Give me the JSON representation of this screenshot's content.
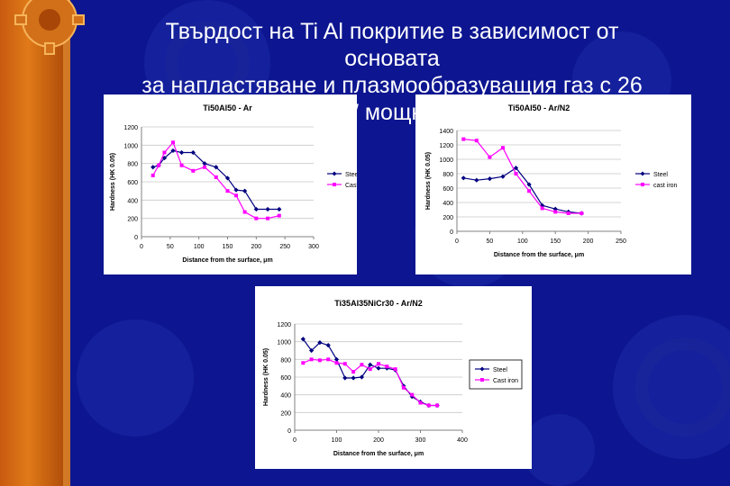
{
  "slide": {
    "title_lines": [
      "Твърдост на Ti Al покритие в зависимост от",
      "основата",
      "за напластяване и плазмообразуващия газ с 26",
      "kW мощност"
    ],
    "colors": {
      "background": "#0d1690",
      "steel": "#000080",
      "cast_iron": "#ff00ff",
      "accent": "#e07a18"
    }
  },
  "chart_data": [
    {
      "type": "line",
      "title": "Ti50Al50 - Ar",
      "xlabel": "Distance from the surface, μm",
      "ylabel": "Hardness (HK 0.05)",
      "xlim": [
        0,
        300
      ],
      "ylim": [
        0,
        1200
      ],
      "xticks": [
        "0",
        "50",
        "100",
        "150",
        "200",
        "250",
        "300"
      ],
      "yticks": [
        "0",
        "200",
        "400",
        "600",
        "800",
        "1000",
        "1200"
      ],
      "legend": [
        "Steel",
        "Cast iron"
      ],
      "series": [
        {
          "name": "Steel",
          "x": [
            20,
            30,
            40,
            55,
            70,
            90,
            110,
            130,
            150,
            165,
            180,
            200,
            220,
            240
          ],
          "y": [
            760,
            780,
            860,
            940,
            920,
            920,
            800,
            760,
            640,
            510,
            500,
            300,
            300,
            300
          ]
        },
        {
          "name": "Cast iron",
          "x": [
            20,
            30,
            40,
            55,
            70,
            90,
            110,
            130,
            150,
            165,
            180,
            200,
            220,
            240
          ],
          "y": [
            670,
            780,
            920,
            1030,
            780,
            720,
            760,
            650,
            500,
            450,
            270,
            200,
            200,
            230
          ]
        }
      ]
    },
    {
      "type": "line",
      "title": "Ti50Al50 - Ar/N2",
      "xlabel": "Distance from the surface, μm",
      "ylabel": "Hardness (HK 0.05)",
      "xlim": [
        0,
        250
      ],
      "ylim": [
        0,
        1400
      ],
      "xticks": [
        "0",
        "50",
        "100",
        "150",
        "200",
        "250"
      ],
      "yticks": [
        "0",
        "200",
        "400",
        "600",
        "800",
        "1000",
        "1200",
        "1400"
      ],
      "legend": [
        "Steel",
        "cast iron"
      ],
      "series": [
        {
          "name": "Steel",
          "x": [
            10,
            30,
            50,
            70,
            90,
            110,
            130,
            150,
            170,
            190
          ],
          "y": [
            740,
            710,
            730,
            760,
            880,
            650,
            360,
            310,
            270,
            250
          ]
        },
        {
          "name": "cast iron",
          "x": [
            10,
            30,
            50,
            70,
            90,
            110,
            130,
            150,
            170,
            190
          ],
          "y": [
            1280,
            1260,
            1030,
            1160,
            800,
            560,
            320,
            270,
            250,
            250
          ]
        }
      ]
    },
    {
      "type": "line",
      "title": "Ti35Al35NiCr30 - Ar/N2",
      "xlabel": "Distance from the surface, μm",
      "ylabel": "Hardness (HK 0.05)",
      "xlim": [
        0,
        400
      ],
      "ylim": [
        0,
        1200
      ],
      "xticks": [
        "0",
        "100",
        "200",
        "300",
        "400"
      ],
      "yticks": [
        "0",
        "200",
        "400",
        "600",
        "800",
        "1000",
        "1200"
      ],
      "legend": [
        "Steel",
        "Cast iron"
      ],
      "series": [
        {
          "name": "Steel",
          "x": [
            20,
            40,
            60,
            80,
            100,
            120,
            140,
            160,
            180,
            200,
            220,
            240,
            260,
            280,
            300,
            320,
            340
          ],
          "y": [
            1030,
            900,
            990,
            960,
            800,
            590,
            590,
            600,
            740,
            700,
            700,
            680,
            500,
            380,
            320,
            280,
            280
          ]
        },
        {
          "name": "Cast iron",
          "x": [
            20,
            40,
            60,
            80,
            100,
            120,
            140,
            160,
            180,
            200,
            220,
            240,
            260,
            280,
            300,
            320,
            340
          ],
          "y": [
            760,
            800,
            790,
            800,
            760,
            750,
            660,
            740,
            690,
            750,
            720,
            690,
            480,
            400,
            310,
            280,
            280
          ]
        }
      ]
    }
  ]
}
